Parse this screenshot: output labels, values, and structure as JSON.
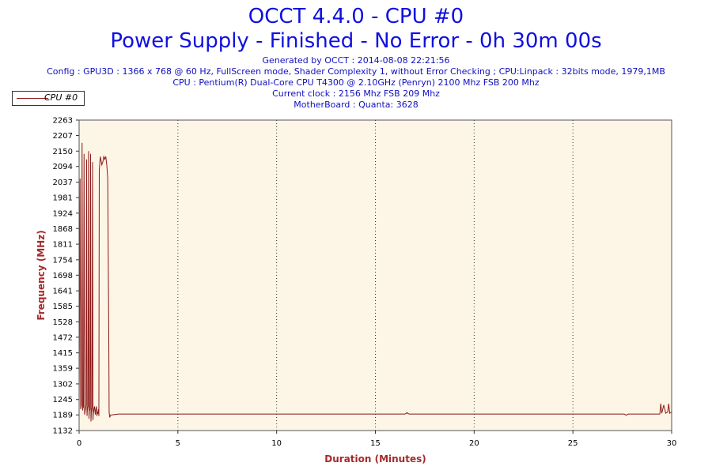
{
  "header": {
    "title": "OCCT 4.4.0 - CPU #0",
    "subtitle": "Power Supply - Finished - No Error - 0h 30m 00s",
    "info_lines": [
      "Generated by OCCT : 2014-08-08 22:21:56",
      "Config : GPU3D : 1366 x 768 @ 60 Hz, FullScreen mode, Shader Complexity 1, without Error Checking ; CPU:Linpack : 32bits mode, 1979,1MB",
      "CPU : Pentium(R) Dual-Core CPU T4300 @ 2.10GHz (Penryn) 2100 Mhz FSB 200 Mhz",
      "Current clock : 2156 Mhz FSB 209 Mhz",
      "MotherBoard : Quanta: 3628"
    ]
  },
  "colors": {
    "plot_background": "#fdf5e6",
    "series": "#8b1a1a",
    "axis_title": "#a52a2a",
    "title": "#1010e0"
  },
  "chart_data": {
    "type": "line",
    "xlabel": "Duration (Minutes)",
    "ylabel": "Frequency (MHz)",
    "xlim": [
      0,
      30
    ],
    "ylim": [
      1132,
      2263
    ],
    "x_ticks": [
      "0",
      "5",
      "10",
      "15",
      "20",
      "25",
      "30"
    ],
    "y_ticks": [
      "1132",
      "1189",
      "1245",
      "1302",
      "1359",
      "1415",
      "1472",
      "1528",
      "1585",
      "1641",
      "1698",
      "1754",
      "1811",
      "1868",
      "1924",
      "1981",
      "2037",
      "2094",
      "2150",
      "2207",
      "2263"
    ],
    "grid": "vertical dotted at major x ticks",
    "legend": {
      "position": "top-left",
      "entries": [
        "CPU #0"
      ]
    },
    "series": [
      {
        "name": "CPU #0",
        "x": [
          0,
          0.05,
          0.08,
          0.12,
          0.15,
          0.18,
          0.2,
          0.22,
          0.25,
          0.28,
          0.32,
          0.35,
          0.38,
          0.4,
          0.42,
          0.45,
          0.48,
          0.5,
          0.52,
          0.55,
          0.58,
          0.6,
          0.62,
          0.65,
          0.68,
          0.7,
          0.72,
          0.75,
          0.78,
          0.8,
          0.82,
          0.85,
          0.88,
          0.9,
          0.92,
          0.95,
          0.98,
          1.0,
          1.02,
          1.05,
          1.08,
          1.1,
          1.15,
          1.2,
          1.25,
          1.3,
          1.35,
          1.4,
          1.45,
          1.5,
          1.52,
          1.55,
          1.6,
          1.65,
          2.0,
          5,
          10,
          15,
          16.5,
          16.6,
          16.7,
          20,
          25,
          27.6,
          27.7,
          27.8,
          29.4,
          29.45,
          29.5,
          29.6,
          29.7,
          29.8,
          29.85,
          29.9,
          30
        ],
        "values": [
          1215,
          2050,
          1210,
          1225,
          2180,
          1205,
          1220,
          1215,
          2140,
          1190,
          1210,
          1225,
          2120,
          1185,
          1210,
          1220,
          2150,
          1175,
          1205,
          1210,
          2140,
          1165,
          1200,
          1215,
          2110,
          1170,
          1195,
          1210,
          1220,
          1205,
          1190,
          1210,
          1220,
          1185,
          1200,
          1195,
          1210,
          1185,
          2080,
          2110,
          2130,
          2120,
          2100,
          2110,
          2130,
          2120,
          2130,
          2100,
          2050,
          1500,
          1200,
          1180,
          1189,
          1189,
          1192,
          1192,
          1192,
          1192,
          1192,
          1197,
          1192,
          1192,
          1192,
          1192,
          1188,
          1192,
          1192,
          1230,
          1195,
          1225,
          1195,
          1200,
          1230,
          1195,
          1200
        ]
      }
    ]
  }
}
